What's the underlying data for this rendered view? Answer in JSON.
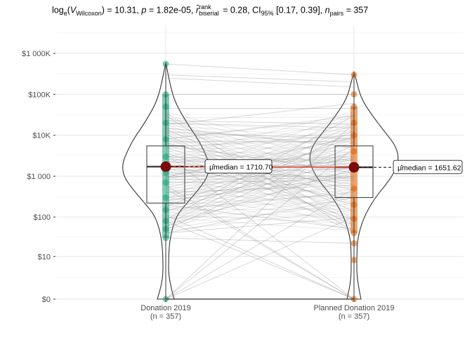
{
  "title": {
    "log_part": "log",
    "log_sub": "e",
    "v_sym": "V",
    "v_sub": "Wilcoxon",
    "v_value": ") = 10.31,",
    "p_sym": "p",
    "p_value": " = 1.82e-05,",
    "r_sym": "r̂",
    "r_sup": "rank",
    "r_sub": "biserial",
    "r_value": " = 0.28,",
    "ci_sym": "CI",
    "ci_sub": "95%",
    "ci_value": " [0.17, 0.39],",
    "n_sym": "n",
    "n_sub": "pairs",
    "n_value": " = 357"
  },
  "chart_data": {
    "type": "violin-box-paired",
    "title": "loge(VWilcoxon) = 10.31, p = 1.82e-05, r̂rank biserial = 0.28, CI95% [0.17, 0.39], npairs = 357",
    "xlabel": "",
    "ylabel": "",
    "y_scale": "pseudo-log10",
    "ylim": [
      0,
      5000000
    ],
    "y_ticks": [
      {
        "value": 0,
        "label": "$0"
      },
      {
        "value": 10,
        "label": "$10"
      },
      {
        "value": 100,
        "label": "$100"
      },
      {
        "value": 1000,
        "label": "$1 000"
      },
      {
        "value": 10000,
        "label": "$10K"
      },
      {
        "value": 100000,
        "label": "$100K"
      },
      {
        "value": 1000000,
        "label": "$1 000K"
      }
    ],
    "groups": [
      {
        "name": "Donation 2019",
        "n_label": "(n = 357)",
        "color": "#1b9e77",
        "median": 1710.7,
        "q1": 220,
        "q3": 5500,
        "whisker_low": 0,
        "whisker_high": 550000,
        "median_label": "μ̂median = 1710.70"
      },
      {
        "name": "Planned Donation 2019",
        "n_label": "(n = 357)",
        "color": "#d95f02",
        "median": 1651.62,
        "q1": 300,
        "q3": 5500,
        "whisker_low": 0,
        "whisker_high": 300000,
        "median_label": "μ̂median = 1651.62"
      }
    ],
    "pairs": [
      [
        1500,
        900
      ],
      [
        20000,
        15000
      ],
      [
        500,
        0
      ],
      [
        3000,
        2000
      ],
      [
        250,
        1000
      ],
      [
        8000,
        30000
      ],
      [
        100000,
        100000
      ],
      [
        0,
        500
      ],
      [
        0,
        5000
      ],
      [
        1200,
        1500
      ],
      [
        40,
        300
      ],
      [
        600,
        0
      ],
      [
        15000,
        5000
      ],
      [
        2500,
        2500
      ],
      [
        60,
        1500
      ],
      [
        300000,
        200000
      ],
      [
        700,
        800
      ],
      [
        0,
        20000
      ],
      [
        5000,
        10000
      ],
      [
        80,
        0
      ],
      [
        200,
        50
      ],
      [
        45000,
        45000
      ],
      [
        1000,
        1000
      ],
      [
        3500,
        0
      ],
      [
        150,
        400
      ],
      [
        12000,
        8000
      ],
      [
        900,
        2500
      ],
      [
        0,
        100
      ],
      [
        7000,
        7000
      ],
      [
        30,
        22
      ],
      [
        550000,
        300000
      ],
      [
        400,
        600
      ],
      [
        2200,
        3000
      ],
      [
        18000,
        60000
      ],
      [
        110,
        0
      ],
      [
        6000,
        1200
      ],
      [
        250000,
        150000
      ],
      [
        950,
        9000
      ],
      [
        0,
        0
      ],
      [
        1800,
        1800
      ]
    ],
    "median_line": {
      "from": 1710.7,
      "to": 1651.62,
      "color": "#e34a33"
    }
  }
}
